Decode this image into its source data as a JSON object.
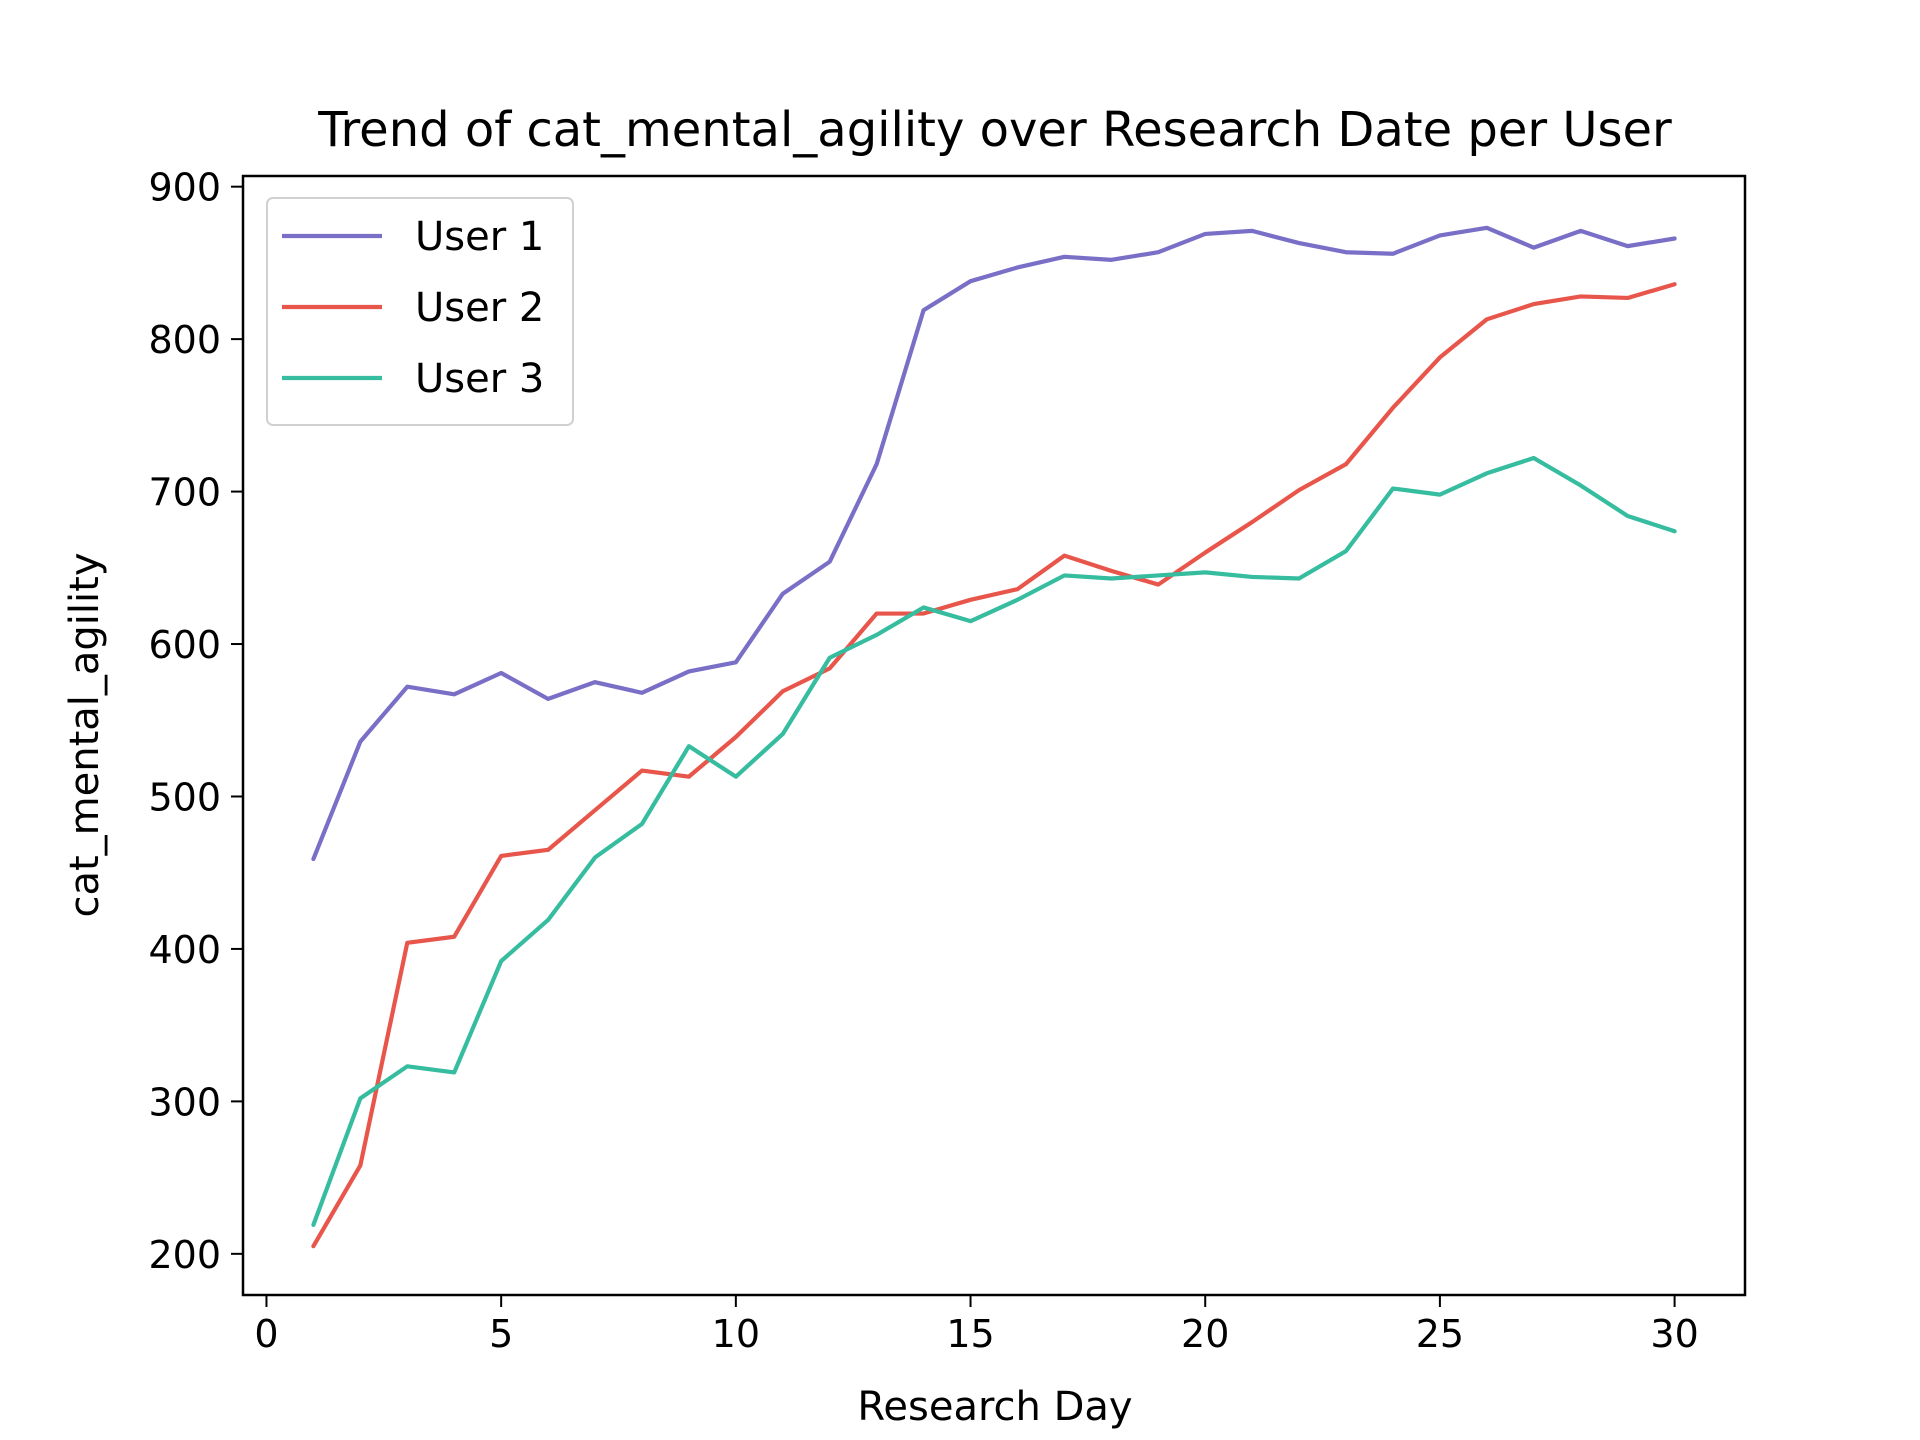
{
  "chart_data": {
    "type": "line",
    "title": "Trend of cat_mental_agility over Research Date per User",
    "xlabel": "Research Day",
    "ylabel": "cat_mental_agility",
    "xlim": [
      -0.5,
      31.5
    ],
    "ylim": [
      173,
      907
    ],
    "xticks": [
      0,
      5,
      10,
      15,
      20,
      25,
      30
    ],
    "yticks": [
      200,
      300,
      400,
      500,
      600,
      700,
      800,
      900
    ],
    "grid": false,
    "legend_position": "top-left",
    "x": [
      1,
      2,
      3,
      4,
      5,
      6,
      7,
      8,
      9,
      10,
      11,
      12,
      13,
      14,
      15,
      16,
      17,
      18,
      19,
      20,
      21,
      22,
      23,
      24,
      25,
      26,
      27,
      28,
      29,
      30
    ],
    "series": [
      {
        "name": "User 1",
        "color": "#7a6fc7",
        "values": [
          459,
          536,
          572,
          567,
          581,
          564,
          575,
          568,
          582,
          588,
          633,
          654,
          718,
          819,
          838,
          847,
          854,
          852,
          857,
          869,
          871,
          863,
          857,
          856,
          868,
          873,
          860,
          871,
          861,
          866
        ]
      },
      {
        "name": "User 2",
        "color": "#e8564b",
        "values": [
          205,
          258,
          404,
          408,
          461,
          465,
          491,
          517,
          513,
          539,
          569,
          584,
          620,
          620,
          629,
          636,
          658,
          648,
          639,
          660,
          680,
          701,
          718,
          755,
          788,
          813,
          823,
          828,
          827,
          836
        ]
      },
      {
        "name": "User 3",
        "color": "#36bc9f",
        "values": [
          219,
          302,
          323,
          319,
          392,
          419,
          460,
          482,
          533,
          513,
          541,
          591,
          606,
          624,
          615,
          629,
          645,
          643,
          645,
          647,
          644,
          643,
          661,
          702,
          698,
          712,
          722,
          704,
          684,
          674
        ]
      }
    ]
  }
}
